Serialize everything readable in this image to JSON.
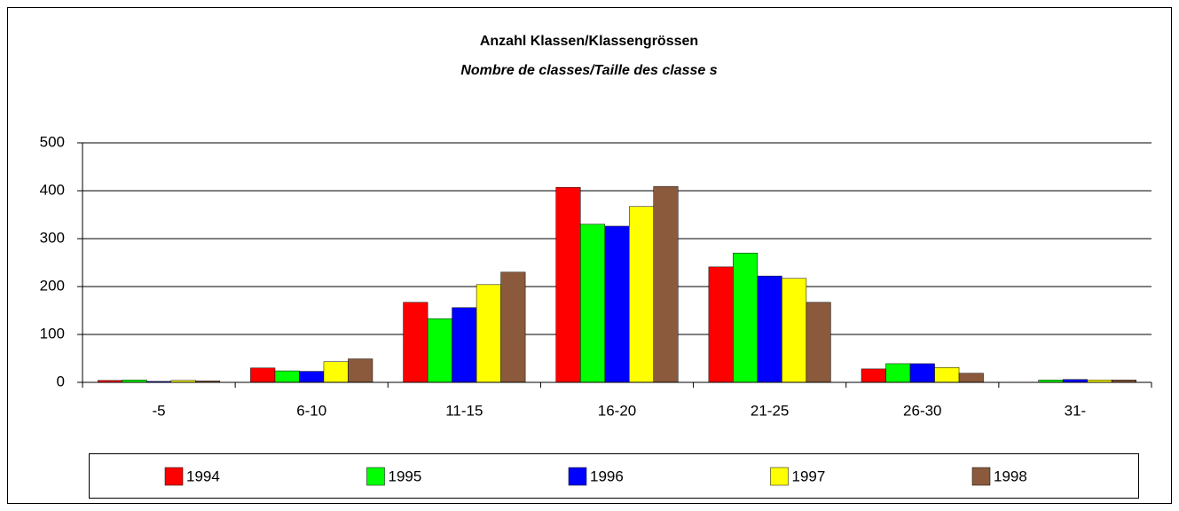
{
  "chart_data": {
    "type": "bar",
    "title": "Anzahl Klassen/Klassengrössen",
    "subtitle": "Nombre de classes/Taille des classe s",
    "categories": [
      "-5",
      "6-10",
      "11-15",
      "16-20",
      "21-25",
      "26-30",
      "31-"
    ],
    "series": [
      {
        "name": "1994",
        "color": "#ff0000",
        "values": [
          4,
          30,
          167,
          407,
          241,
          28,
          0
        ]
      },
      {
        "name": "1995",
        "color": "#00ff00",
        "values": [
          5,
          24,
          133,
          330,
          270,
          39,
          5
        ]
      },
      {
        "name": "1996",
        "color": "#0000ff",
        "values": [
          2,
          23,
          156,
          326,
          222,
          39,
          6
        ]
      },
      {
        "name": "1997",
        "color": "#ffff00",
        "values": [
          4,
          43,
          204,
          367,
          217,
          31,
          5
        ]
      },
      {
        "name": "1998",
        "color": "#8b5a3c",
        "values": [
          3,
          49,
          230,
          409,
          167,
          19,
          5
        ]
      }
    ],
    "ylim": [
      0,
      500
    ],
    "yticks": [
      0,
      100,
      200,
      300,
      400,
      500
    ],
    "grid": true,
    "legend": "bottom"
  }
}
